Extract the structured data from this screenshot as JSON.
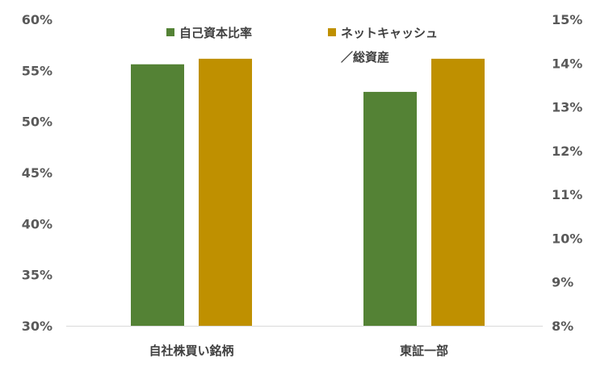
{
  "chart_data": {
    "type": "bar",
    "categories": [
      "自社株買い銘柄",
      "東証一部"
    ],
    "series": [
      {
        "name": "自己資本比率",
        "axis": "left",
        "color": "#548235",
        "values": [
          55.6,
          52.9
        ]
      },
      {
        "name": "ネットキャッシュ／総資産",
        "name_lines": [
          "ネットキャッシュ",
          "／総資産"
        ],
        "axis": "right",
        "color": "#BF9000",
        "values": [
          14.1,
          14.1
        ]
      }
    ],
    "y_left": {
      "ylim": [
        30,
        60
      ],
      "ticks": [
        30,
        35,
        40,
        45,
        50,
        55,
        60
      ],
      "tick_labels": [
        "30%",
        "35%",
        "40%",
        "45%",
        "50%",
        "55%",
        "60%"
      ]
    },
    "y_right": {
      "ylim": [
        8,
        15
      ],
      "ticks": [
        8,
        9,
        10,
        11,
        12,
        13,
        14,
        15
      ],
      "tick_labels": [
        "8%",
        "9%",
        "10%",
        "11%",
        "12%",
        "13%",
        "14%",
        "15%"
      ]
    },
    "legend_position": "top",
    "grid": false,
    "baseline_color": "#d9d9d9",
    "title": "",
    "xlabel": "",
    "ylabel": ""
  }
}
